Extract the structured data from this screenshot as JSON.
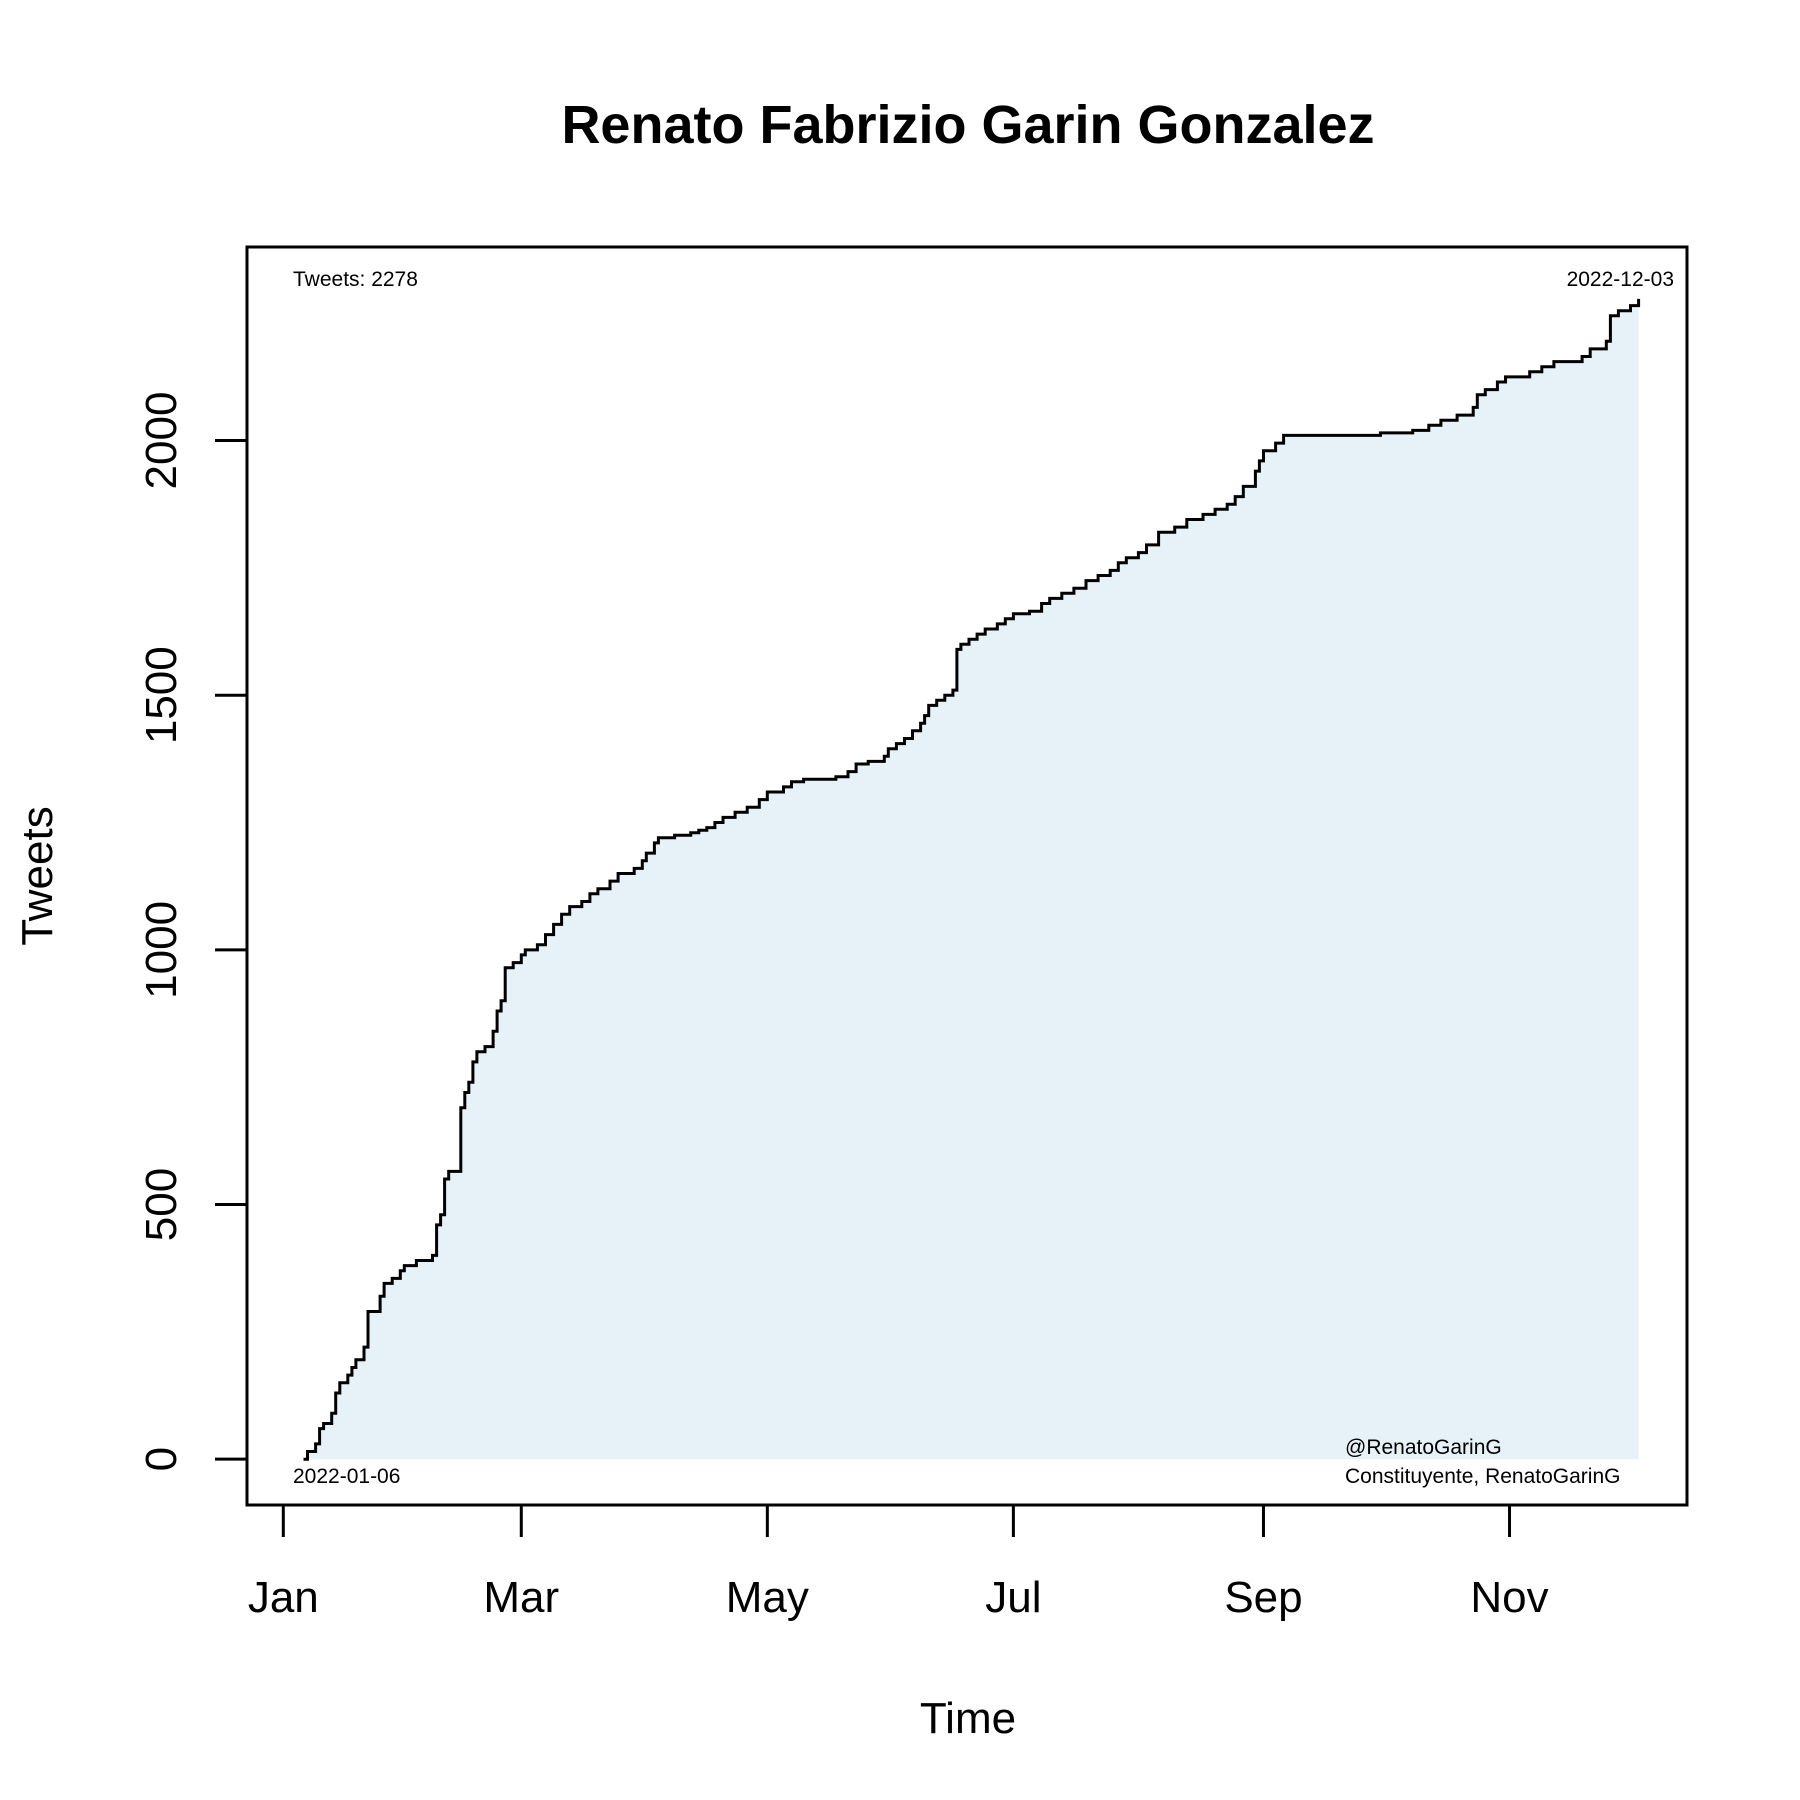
{
  "chart_data": {
    "type": "line",
    "step": true,
    "title": "Renato Fabrizio Garin Gonzalez",
    "xlabel": "Time",
    "ylabel": "Tweets",
    "xlim": [
      "2021-12-23",
      "2022-12-15"
    ],
    "ylim": [
      -90,
      2380
    ],
    "x_ticks": [
      {
        "date": "2022-01-01",
        "label": "Jan"
      },
      {
        "date": "2022-03-01",
        "label": "Mar"
      },
      {
        "date": "2022-05-01",
        "label": "May"
      },
      {
        "date": "2022-07-01",
        "label": "Jul"
      },
      {
        "date": "2022-09-01",
        "label": "Sep"
      },
      {
        "date": "2022-11-01",
        "label": "Nov"
      }
    ],
    "y_ticks": [
      0,
      500,
      1000,
      1500,
      2000
    ],
    "annotations": {
      "top_left": "Tweets: 2278",
      "top_right": "2022-12-03",
      "bottom_left": "2022-01-06",
      "bottom_right_line1": "@RenatoGarinG",
      "bottom_right_line2": "Constituyente, RenatoGarinG"
    },
    "fill_color": "#e6f2f7",
    "line_color": "#000000",
    "series": [
      {
        "points": [
          [
            "2022-01-06",
            0
          ],
          [
            "2022-01-07",
            15
          ],
          [
            "2022-01-09",
            30
          ],
          [
            "2022-01-10",
            60
          ],
          [
            "2022-01-11",
            70
          ],
          [
            "2022-01-13",
            90
          ],
          [
            "2022-01-14",
            130
          ],
          [
            "2022-01-15",
            150
          ],
          [
            "2022-01-17",
            165
          ],
          [
            "2022-01-18",
            180
          ],
          [
            "2022-01-19",
            195
          ],
          [
            "2022-01-21",
            220
          ],
          [
            "2022-01-22",
            290
          ],
          [
            "2022-01-25",
            320
          ],
          [
            "2022-01-26",
            345
          ],
          [
            "2022-01-28",
            355
          ],
          [
            "2022-01-30",
            370
          ],
          [
            "2022-01-31",
            380
          ],
          [
            "2022-02-03",
            390
          ],
          [
            "2022-02-07",
            400
          ],
          [
            "2022-02-08",
            460
          ],
          [
            "2022-02-09",
            480
          ],
          [
            "2022-02-10",
            550
          ],
          [
            "2022-02-11",
            565
          ],
          [
            "2022-02-14",
            690
          ],
          [
            "2022-02-15",
            720
          ],
          [
            "2022-02-16",
            740
          ],
          [
            "2022-02-17",
            780
          ],
          [
            "2022-02-18",
            800
          ],
          [
            "2022-02-20",
            810
          ],
          [
            "2022-02-22",
            840
          ],
          [
            "2022-02-23",
            880
          ],
          [
            "2022-02-24",
            900
          ],
          [
            "2022-02-25",
            965
          ],
          [
            "2022-02-27",
            975
          ],
          [
            "2022-03-01",
            990
          ],
          [
            "2022-03-02",
            1000
          ],
          [
            "2022-03-05",
            1010
          ],
          [
            "2022-03-07",
            1030
          ],
          [
            "2022-03-09",
            1050
          ],
          [
            "2022-03-11",
            1070
          ],
          [
            "2022-03-13",
            1085
          ],
          [
            "2022-03-16",
            1095
          ],
          [
            "2022-03-18",
            1110
          ],
          [
            "2022-03-20",
            1120
          ],
          [
            "2022-03-23",
            1135
          ],
          [
            "2022-03-25",
            1150
          ],
          [
            "2022-03-29",
            1160
          ],
          [
            "2022-03-31",
            1175
          ],
          [
            "2022-04-01",
            1190
          ],
          [
            "2022-04-03",
            1210
          ],
          [
            "2022-04-04",
            1220
          ],
          [
            "2022-04-08",
            1225
          ],
          [
            "2022-04-12",
            1230
          ],
          [
            "2022-04-14",
            1235
          ],
          [
            "2022-04-16",
            1240
          ],
          [
            "2022-04-18",
            1250
          ],
          [
            "2022-04-20",
            1260
          ],
          [
            "2022-04-23",
            1270
          ],
          [
            "2022-04-26",
            1280
          ],
          [
            "2022-04-29",
            1295
          ],
          [
            "2022-05-01",
            1310
          ],
          [
            "2022-05-05",
            1320
          ],
          [
            "2022-05-07",
            1330
          ],
          [
            "2022-05-10",
            1335
          ],
          [
            "2022-05-18",
            1340
          ],
          [
            "2022-05-21",
            1350
          ],
          [
            "2022-05-23",
            1365
          ],
          [
            "2022-05-26",
            1370
          ],
          [
            "2022-05-30",
            1380
          ],
          [
            "2022-05-31",
            1395
          ],
          [
            "2022-06-02",
            1405
          ],
          [
            "2022-06-04",
            1415
          ],
          [
            "2022-06-06",
            1430
          ],
          [
            "2022-06-08",
            1445
          ],
          [
            "2022-06-09",
            1460
          ],
          [
            "2022-06-10",
            1480
          ],
          [
            "2022-06-12",
            1490
          ],
          [
            "2022-06-14",
            1500
          ],
          [
            "2022-06-16",
            1510
          ],
          [
            "2022-06-17",
            1590
          ],
          [
            "2022-06-18",
            1600
          ],
          [
            "2022-06-20",
            1610
          ],
          [
            "2022-06-22",
            1620
          ],
          [
            "2022-06-24",
            1630
          ],
          [
            "2022-06-27",
            1640
          ],
          [
            "2022-06-29",
            1650
          ],
          [
            "2022-07-01",
            1660
          ],
          [
            "2022-07-05",
            1665
          ],
          [
            "2022-07-08",
            1680
          ],
          [
            "2022-07-10",
            1690
          ],
          [
            "2022-07-13",
            1700
          ],
          [
            "2022-07-16",
            1710
          ],
          [
            "2022-07-19",
            1725
          ],
          [
            "2022-07-22",
            1735
          ],
          [
            "2022-07-25",
            1745
          ],
          [
            "2022-07-27",
            1760
          ],
          [
            "2022-07-29",
            1770
          ],
          [
            "2022-08-01",
            1780
          ],
          [
            "2022-08-03",
            1795
          ],
          [
            "2022-08-06",
            1820
          ],
          [
            "2022-08-10",
            1830
          ],
          [
            "2022-08-13",
            1845
          ],
          [
            "2022-08-17",
            1855
          ],
          [
            "2022-08-20",
            1865
          ],
          [
            "2022-08-23",
            1875
          ],
          [
            "2022-08-25",
            1890
          ],
          [
            "2022-08-27",
            1910
          ],
          [
            "2022-08-30",
            1940
          ],
          [
            "2022-08-31",
            1960
          ],
          [
            "2022-09-01",
            1980
          ],
          [
            "2022-09-04",
            1995
          ],
          [
            "2022-09-06",
            2010
          ],
          [
            "2022-09-30",
            2015
          ],
          [
            "2022-10-08",
            2020
          ],
          [
            "2022-10-12",
            2030
          ],
          [
            "2022-10-15",
            2040
          ],
          [
            "2022-10-19",
            2050
          ],
          [
            "2022-10-23",
            2065
          ],
          [
            "2022-10-24",
            2090
          ],
          [
            "2022-10-26",
            2100
          ],
          [
            "2022-10-29",
            2115
          ],
          [
            "2022-10-31",
            2125
          ],
          [
            "2022-11-06",
            2135
          ],
          [
            "2022-11-09",
            2145
          ],
          [
            "2022-11-12",
            2155
          ],
          [
            "2022-11-19",
            2165
          ],
          [
            "2022-11-21",
            2180
          ],
          [
            "2022-11-25",
            2195
          ],
          [
            "2022-11-26",
            2245
          ],
          [
            "2022-11-28",
            2255
          ],
          [
            "2022-12-01",
            2265
          ],
          [
            "2022-12-03",
            2278
          ]
        ]
      }
    ]
  }
}
